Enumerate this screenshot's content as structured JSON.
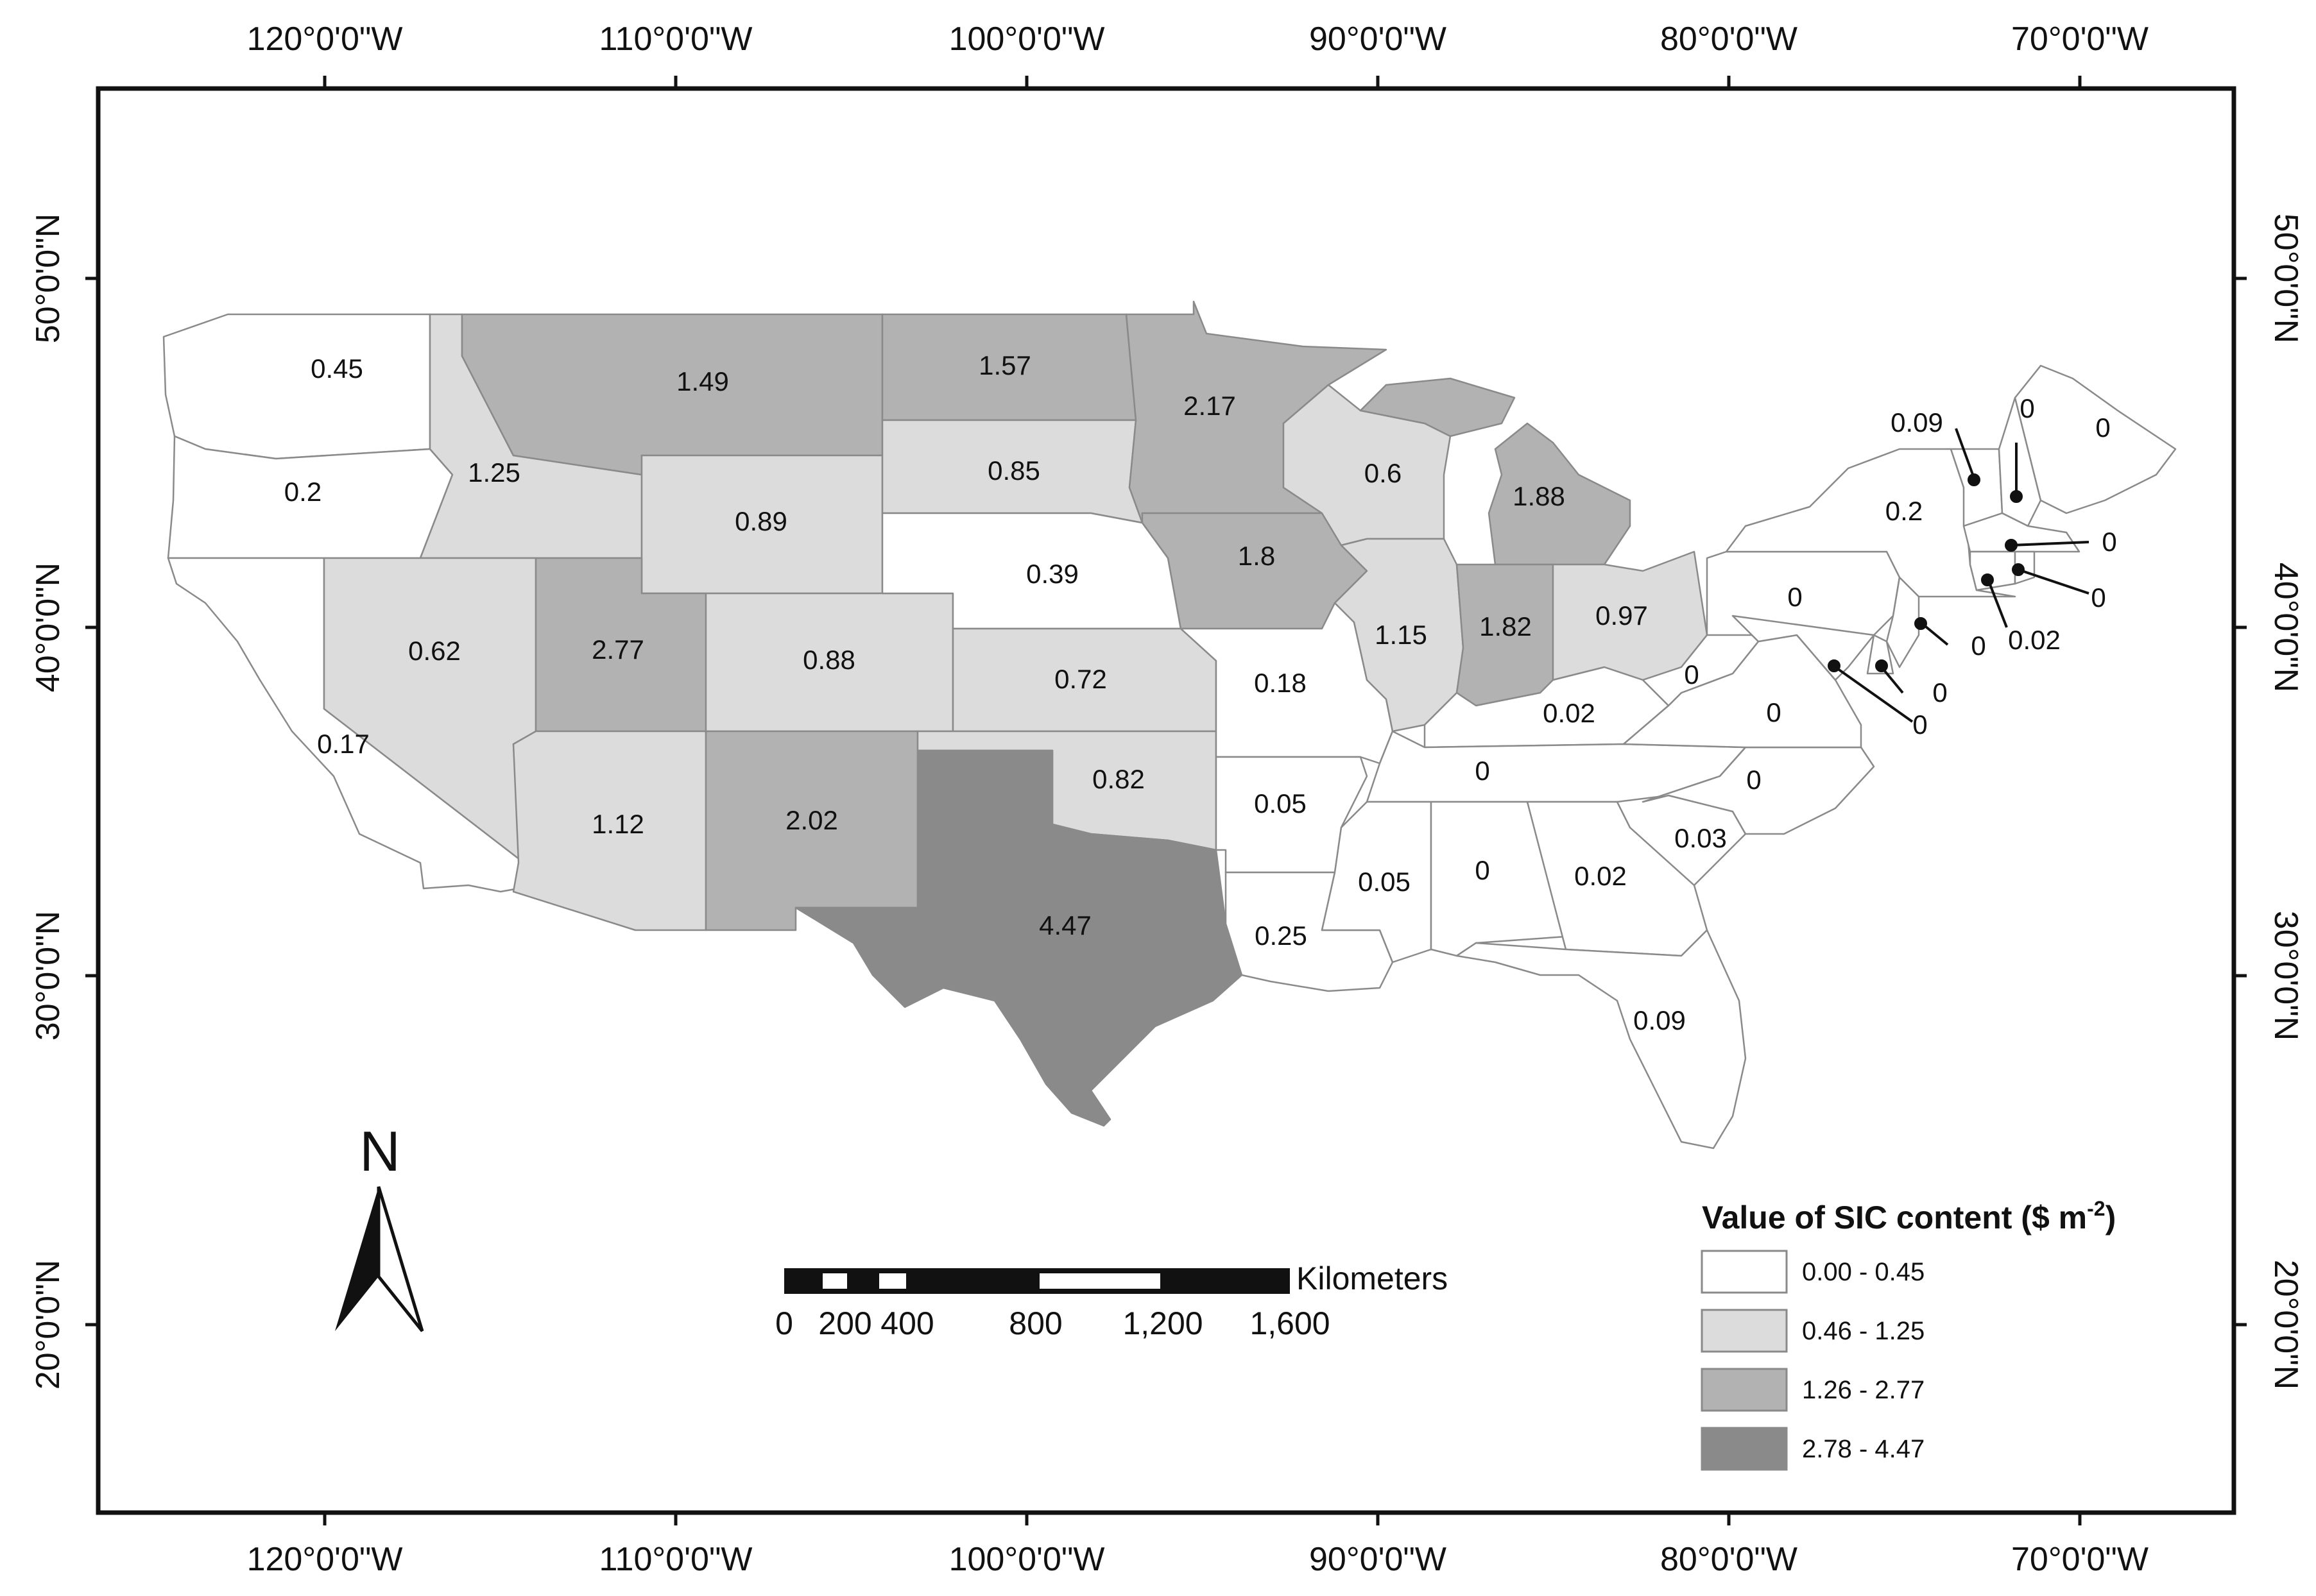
{
  "map": {
    "lon_labels": [
      "120°0'0\"W",
      "110°0'0\"W",
      "100°0'0\"W",
      "90°0'0\"W",
      "80°0'0\"W",
      "70°0'0\"W"
    ],
    "lat_labels": [
      "50°0'0\"N",
      "40°0'0\"N",
      "30°0'0\"N",
      "20°0'0\"N"
    ],
    "north_arrow_label": "N",
    "scale_bar": {
      "unit": "Kilometers",
      "ticks": [
        "0",
        "200",
        "400",
        "800",
        "1,200",
        "1,600"
      ]
    },
    "legend": {
      "title": "Value of SIC content ($ m",
      "title_sup": "-2",
      "title_end": ")",
      "classes": [
        {
          "label": "0.00 - 0.45",
          "color": "#ffffff"
        },
        {
          "label": "0.46 - 1.25",
          "color": "#dcdcdc"
        },
        {
          "label": "1.26 - 2.77",
          "color": "#b2b2b2"
        },
        {
          "label": "2.78 - 4.47",
          "color": "#8a8a8a"
        }
      ]
    },
    "state_values": [
      {
        "state": "WA",
        "value": "0.45"
      },
      {
        "state": "OR",
        "value": "0.2"
      },
      {
        "state": "CA",
        "value": "0.17"
      },
      {
        "state": "ID",
        "value": "1.25"
      },
      {
        "state": "NV",
        "value": "0.62"
      },
      {
        "state": "MT",
        "value": "1.49"
      },
      {
        "state": "WY",
        "value": "0.89"
      },
      {
        "state": "UT",
        "value": "2.77"
      },
      {
        "state": "AZ",
        "value": "1.12"
      },
      {
        "state": "CO",
        "value": "0.88"
      },
      {
        "state": "NM",
        "value": "2.02"
      },
      {
        "state": "ND",
        "value": "1.57"
      },
      {
        "state": "SD",
        "value": "0.85"
      },
      {
        "state": "NE",
        "value": "0.39"
      },
      {
        "state": "KS",
        "value": "0.72"
      },
      {
        "state": "OK",
        "value": "0.82"
      },
      {
        "state": "TX",
        "value": "4.47"
      },
      {
        "state": "MN",
        "value": "2.17"
      },
      {
        "state": "IA",
        "value": "1.8"
      },
      {
        "state": "MO",
        "value": "0.18"
      },
      {
        "state": "AR",
        "value": "0.05"
      },
      {
        "state": "LA",
        "value": "0.25"
      },
      {
        "state": "WI",
        "value": "0.6"
      },
      {
        "state": "IL",
        "value": "1.15"
      },
      {
        "state": "MI",
        "value": "1.88"
      },
      {
        "state": "IN",
        "value": "1.82"
      },
      {
        "state": "OH",
        "value": "0.97"
      },
      {
        "state": "KY",
        "value": "0.02"
      },
      {
        "state": "TN",
        "value": "0"
      },
      {
        "state": "MS",
        "value": "0.05"
      },
      {
        "state": "AL",
        "value": "0"
      },
      {
        "state": "GA",
        "value": "0.02"
      },
      {
        "state": "FL",
        "value": "0.09"
      },
      {
        "state": "SC",
        "value": "0.03"
      },
      {
        "state": "NC",
        "value": "0"
      },
      {
        "state": "VA",
        "value": "0"
      },
      {
        "state": "WV",
        "value": "0"
      },
      {
        "state": "PA",
        "value": "0"
      },
      {
        "state": "NY",
        "value": "0.2"
      },
      {
        "state": "VT",
        "value": "0.09"
      },
      {
        "state": "NH",
        "value": "0"
      },
      {
        "state": "ME",
        "value": "0"
      },
      {
        "state": "MA",
        "value": "0"
      },
      {
        "state": "RI",
        "value": "0"
      },
      {
        "state": "CT",
        "value": "0.02"
      },
      {
        "state": "NJ",
        "value": "0"
      },
      {
        "state": "DE",
        "value": "0"
      },
      {
        "state": "MD",
        "value": "0"
      }
    ]
  }
}
